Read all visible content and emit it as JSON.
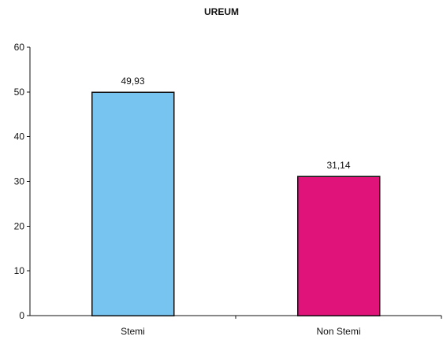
{
  "chart_data": {
    "type": "bar",
    "title": "UREUM",
    "xlabel": "",
    "ylabel": "",
    "categories": [
      "Stemi",
      "Non Stemi"
    ],
    "values": [
      49.93,
      31.14
    ],
    "value_labels": [
      "49,93",
      "31,14"
    ],
    "ylim": [
      0,
      60
    ],
    "yticks": [
      0,
      10,
      20,
      30,
      40,
      50,
      60
    ],
    "ytick_labels": [
      "0",
      "10",
      "20",
      "30",
      "40",
      "50",
      "60"
    ],
    "grid": false,
    "legend": "none",
    "bar_colors": [
      "#78c4f0",
      "#e0137a"
    ]
  }
}
